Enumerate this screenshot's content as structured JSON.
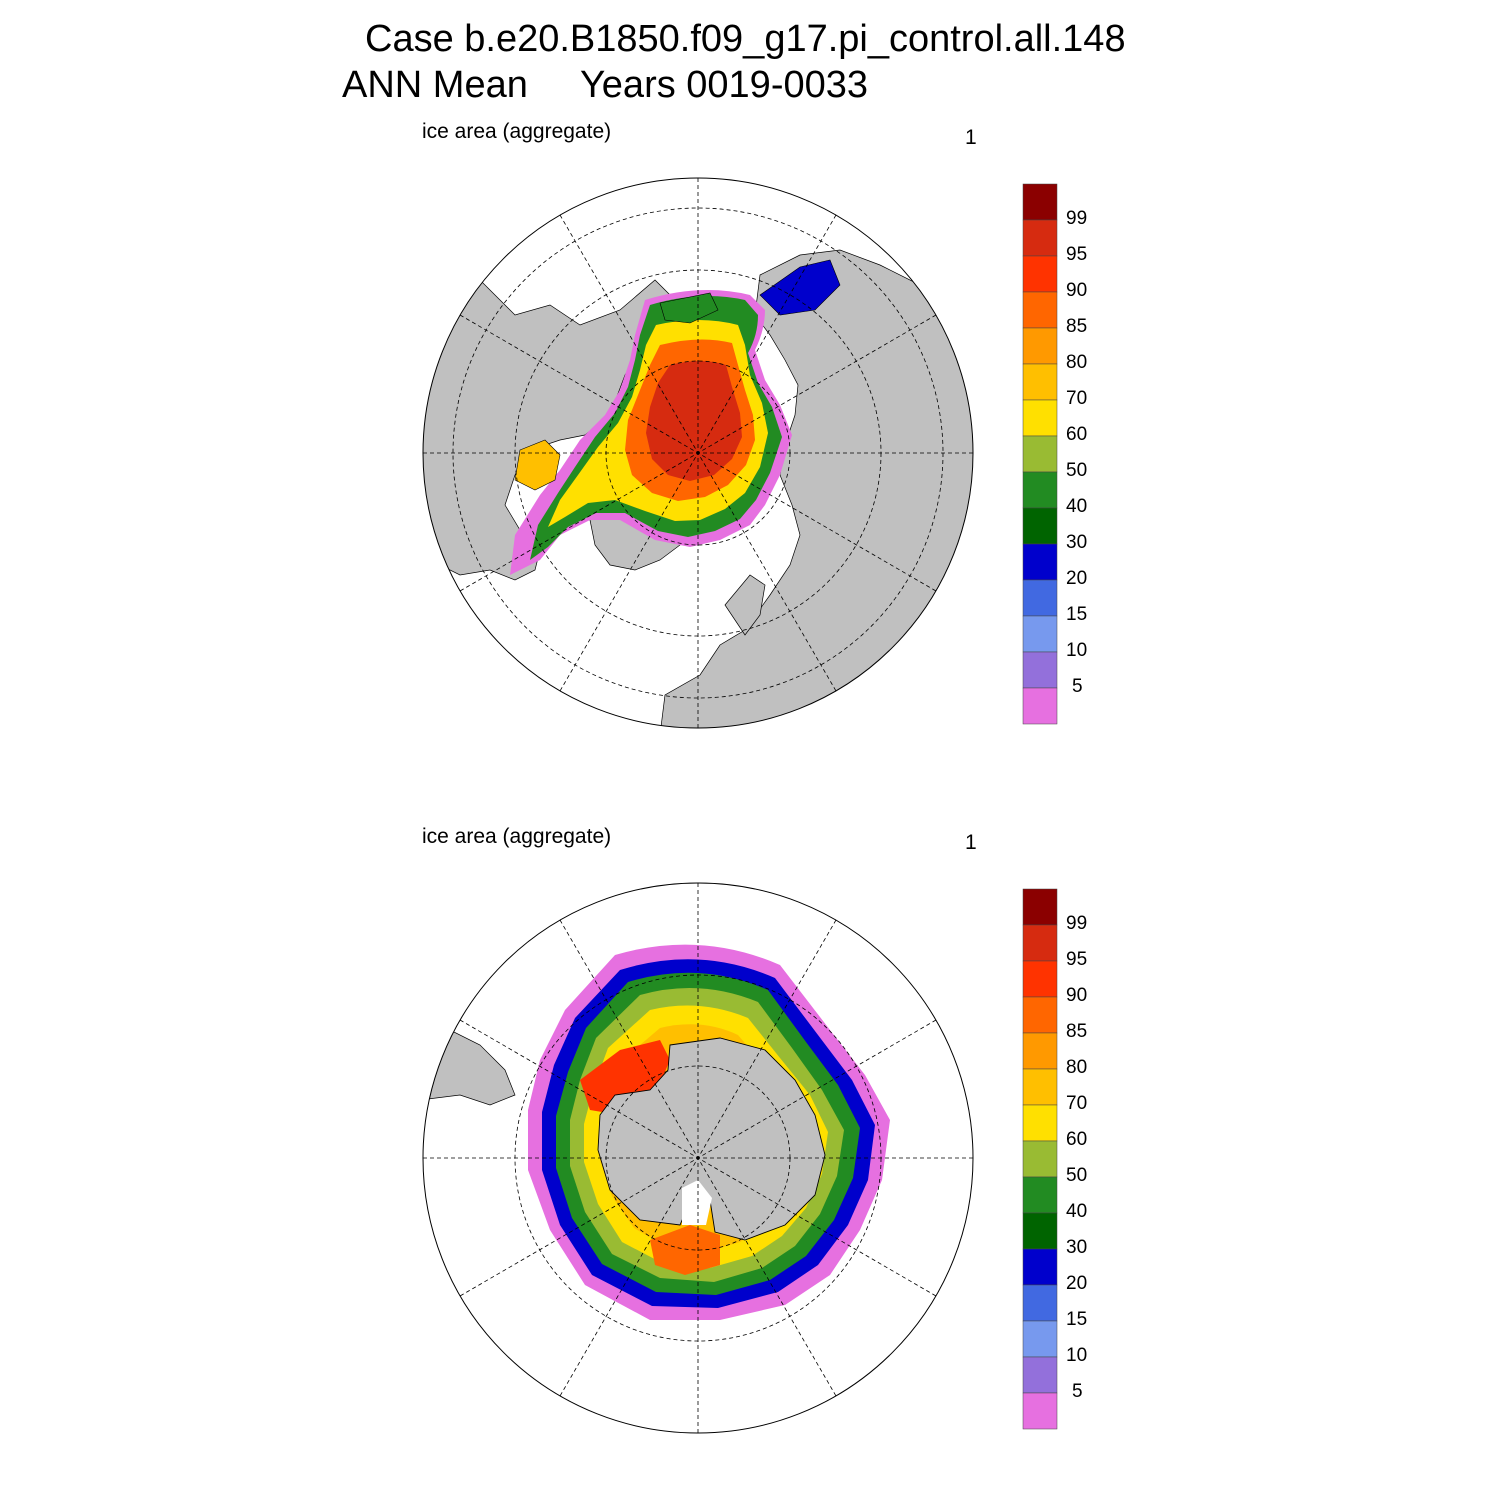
{
  "header": {
    "line1": "Case b.e20.B1850.f09_g17.pi_control.all.148",
    "line2": "ANN Mean     Years 0019-0033"
  },
  "panels": [
    {
      "id": "nh",
      "label": "ice area  (aggregate)",
      "units": "1",
      "hemisphere": "north"
    },
    {
      "id": "sh",
      "label": "ice area  (aggregate)",
      "units": "1",
      "hemisphere": "south"
    }
  ],
  "colorbar": {
    "labels": [
      "99",
      "95",
      "90",
      "85",
      "80",
      "70",
      "60",
      "50",
      "40",
      "30",
      "20",
      "15",
      "10",
      "5"
    ],
    "colors_top_to_bottom": [
      "#8b0000",
      "#d62b10",
      "#ff3300",
      "#ff6600",
      "#ff9900",
      "#ffbf00",
      "#ffe000",
      "#99bb33",
      "#228b22",
      "#006400",
      "#0000cc",
      "#4169e1",
      "#7799ee",
      "#9370db",
      "#e670e0"
    ]
  },
  "colors": {
    "land": "#c0c0c0",
    "ocean": "#ffffff",
    "contour": "#000000"
  }
}
